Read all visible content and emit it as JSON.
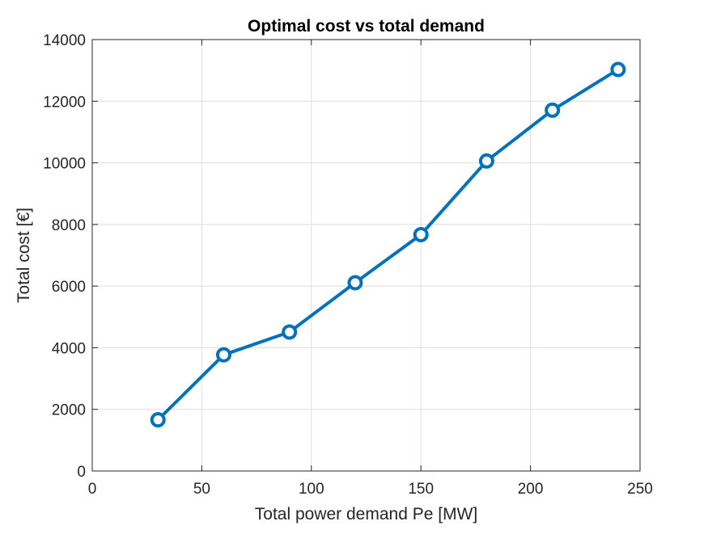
{
  "chart_data": {
    "type": "line",
    "title": "Optimal cost vs total demand",
    "xlabel": "Total power demand Pe [MW]",
    "ylabel": "Total cost [€]",
    "xlim": [
      0,
      250
    ],
    "ylim": [
      0,
      14000
    ],
    "xticks": [
      0,
      50,
      100,
      150,
      200,
      250
    ],
    "yticks": [
      0,
      2000,
      4000,
      6000,
      8000,
      10000,
      12000,
      14000
    ],
    "grid": true,
    "legend": "none",
    "series": [
      {
        "color": "#0072BD",
        "marker": "circle",
        "x": [
          30,
          60,
          90,
          120,
          150,
          180,
          210,
          240
        ],
        "y": [
          1660,
          3770,
          4510,
          6110,
          7670,
          10060,
          11710,
          13030
        ]
      }
    ]
  }
}
